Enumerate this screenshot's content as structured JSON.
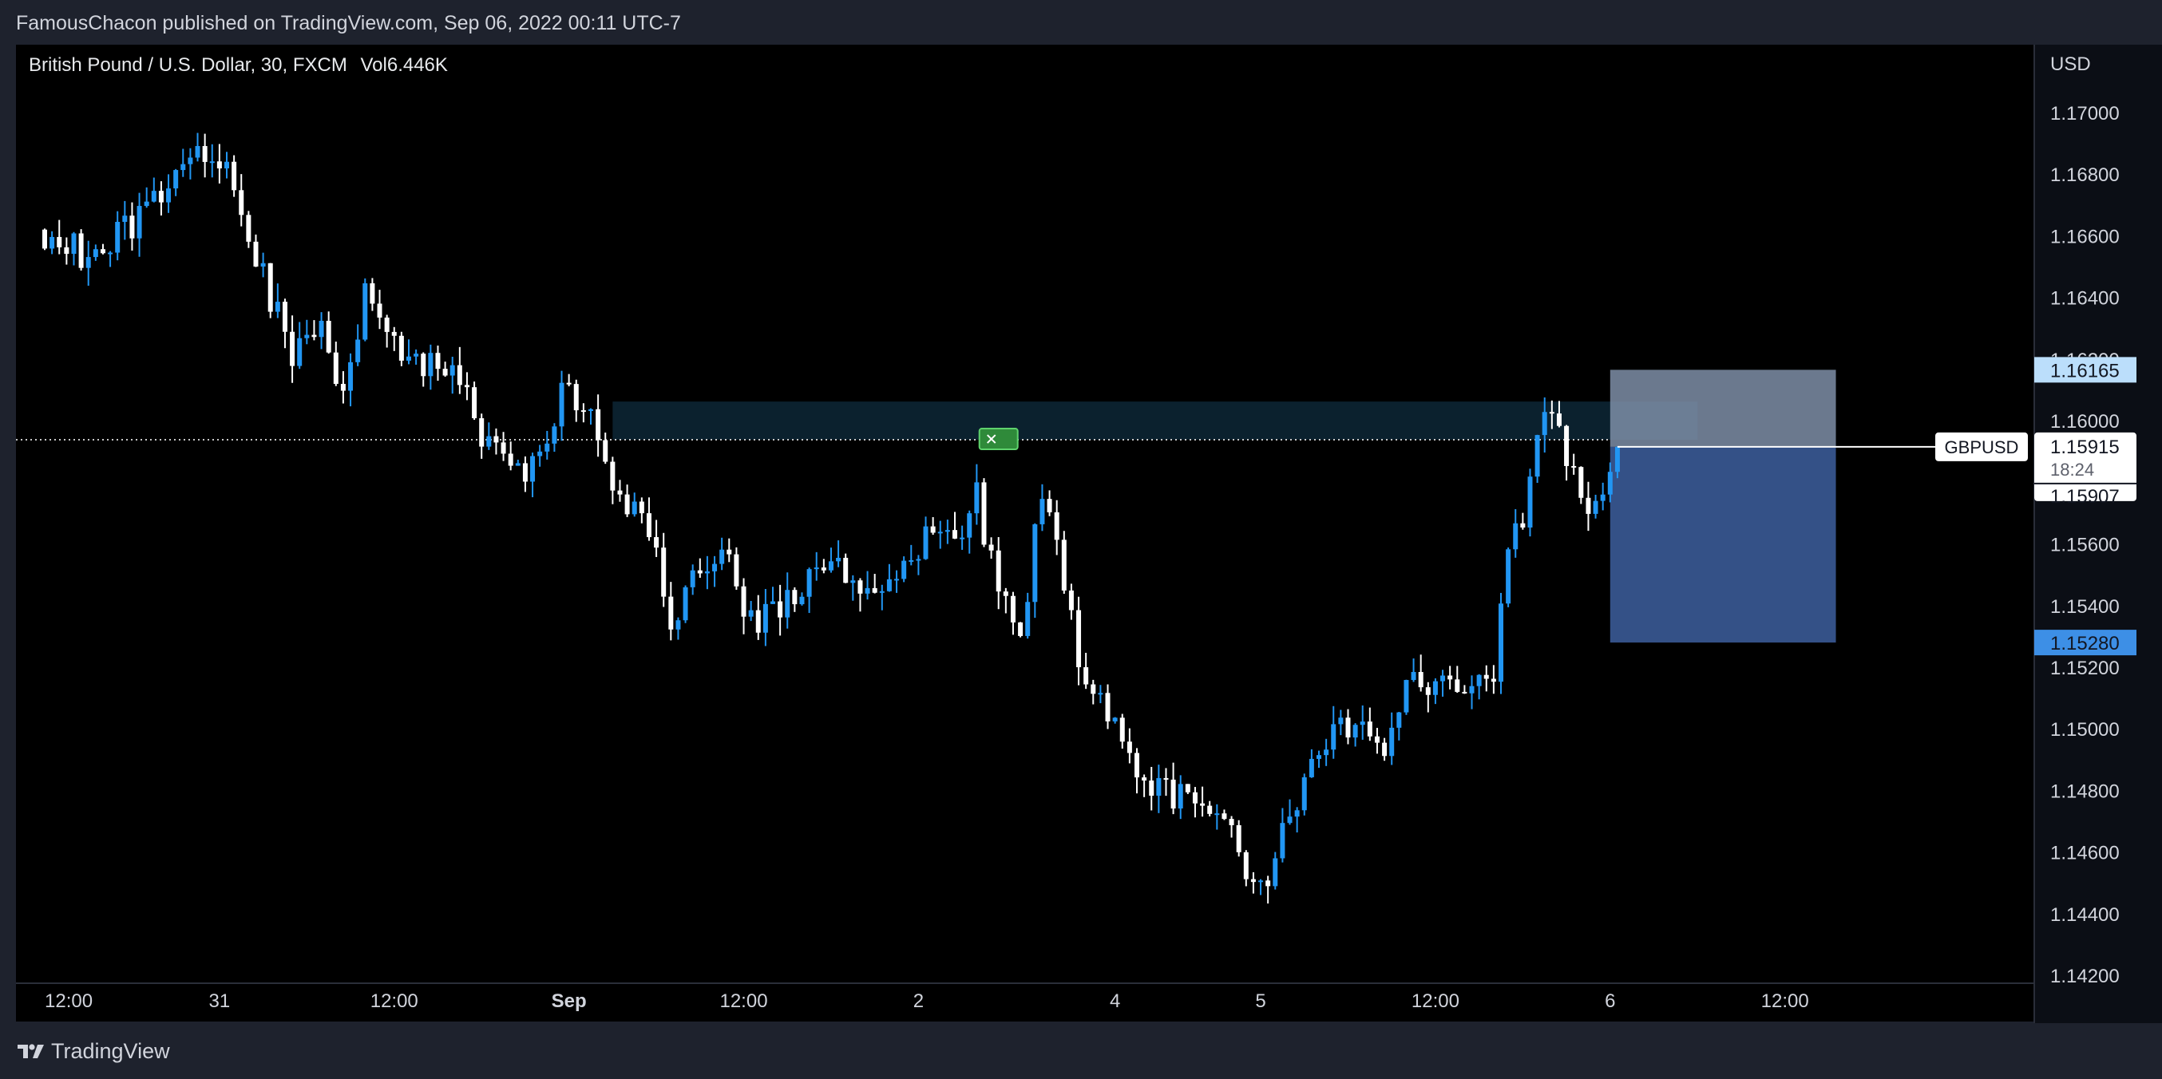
{
  "header": {
    "published_text": "FamousChacon published on TradingView.com, Sep 06, 2022 00:11 UTC-7"
  },
  "legend": {
    "symbol_text": "British Pound / U.S. Dollar, 30, FXCM",
    "volume_text": "Vol6.446K"
  },
  "footer": {
    "logo_text": "TradingView",
    "logo_icon": "tradingview-logo-icon"
  },
  "colors": {
    "background": "#000000",
    "chrome": "#1e222d",
    "bullish": "#2196f3",
    "bearish": "#ffffff",
    "axis_text": "#d1d4dc",
    "resistance_zone": "#0c2330",
    "stop_zone": "#7e8ea7",
    "target_zone": "#3a5a96",
    "stop_label": "#bbdefb",
    "target_label": "#3d8fe6",
    "marker": "#2f8a3a"
  },
  "chart_data": {
    "type": "candlestick",
    "symbol": "British Pound / U.S. Dollar",
    "ticker": "GBPUSD",
    "interval": "30",
    "source": "FXCM",
    "volume": "Vol6.446K",
    "currency": "USD",
    "ylim": [
      1.1419,
      1.1722
    ],
    "y_ticks": [
      "1.17000",
      "1.16800",
      "1.16600",
      "1.16400",
      "1.16200",
      "1.16000",
      "1.15800",
      "1.15600",
      "1.15400",
      "1.15200",
      "1.15000",
      "1.14800",
      "1.14600",
      "1.14400",
      "1.14200"
    ],
    "x_ticks": [
      {
        "label": "12:00",
        "bar": 0,
        "bold": false
      },
      {
        "label": "31",
        "bar": 24,
        "bold": false
      },
      {
        "label": "12:00",
        "bar": 48,
        "bold": false
      },
      {
        "label": "Sep",
        "bar": 72,
        "bold": true
      },
      {
        "label": "12:00",
        "bar": 96,
        "bold": false
      },
      {
        "label": "2",
        "bar": 120,
        "bold": false
      },
      {
        "label": "4",
        "bar": 147,
        "bold": false
      },
      {
        "label": "5",
        "bar": 167,
        "bold": false
      },
      {
        "label": "12:00",
        "bar": 191,
        "bold": false
      },
      {
        "label": "6",
        "bar": 215,
        "bold": false
      },
      {
        "label": "12:00",
        "bar": 239,
        "bold": false
      }
    ],
    "waypoints": [
      [
        0,
        1.1658
      ],
      [
        5,
        1.1655
      ],
      [
        12,
        1.1663
      ],
      [
        16,
        1.1675
      ],
      [
        22,
        1.1688
      ],
      [
        25,
        1.1685
      ],
      [
        28,
        1.166
      ],
      [
        31,
        1.164
      ],
      [
        34,
        1.1622
      ],
      [
        38,
        1.1628
      ],
      [
        41,
        1.1612
      ],
      [
        44,
        1.164
      ],
      [
        47,
        1.163
      ],
      [
        50,
        1.162
      ],
      [
        55,
        1.1618
      ],
      [
        60,
        1.1597
      ],
      [
        63,
        1.1585
      ],
      [
        66,
        1.1583
      ],
      [
        69,
        1.159
      ],
      [
        71,
        1.1612
      ],
      [
        75,
        1.1602
      ],
      [
        78,
        1.1575
      ],
      [
        82,
        1.1575
      ],
      [
        84,
        1.1555
      ],
      [
        86,
        1.153
      ],
      [
        89,
        1.155
      ],
      [
        93,
        1.156
      ],
      [
        97,
        1.1535
      ],
      [
        100,
        1.154
      ],
      [
        104,
        1.1545
      ],
      [
        108,
        1.1555
      ],
      [
        111,
        1.1548
      ],
      [
        115,
        1.155
      ],
      [
        118,
        1.155
      ],
      [
        122,
        1.1565
      ],
      [
        126,
        1.156
      ],
      [
        128,
        1.1575
      ],
      [
        131,
        1.1545
      ],
      [
        134,
        1.1525
      ],
      [
        137,
        1.158
      ],
      [
        139,
        1.1565
      ],
      [
        141,
        1.1535
      ],
      [
        142,
        1.1515
      ],
      [
        145,
        1.151
      ],
      [
        147,
        1.1505
      ],
      [
        150,
        1.148
      ],
      [
        155,
        1.1478
      ],
      [
        159,
        1.148
      ],
      [
        163,
        1.1465
      ],
      [
        167,
        1.1448
      ],
      [
        169,
        1.146
      ],
      [
        173,
        1.148
      ],
      [
        177,
        1.15
      ],
      [
        181,
        1.1505
      ],
      [
        183,
        1.149
      ],
      [
        186,
        1.151
      ],
      [
        189,
        1.1515
      ],
      [
        194,
        1.1516
      ],
      [
        199,
        1.1515
      ],
      [
        200,
        1.1545
      ],
      [
        203,
        1.157
      ],
      [
        205,
        1.1595
      ],
      [
        207,
        1.16
      ],
      [
        210,
        1.1585
      ],
      [
        212,
        1.1565
      ],
      [
        213,
        1.157
      ],
      [
        215,
        1.158
      ],
      [
        216,
        1.159
      ]
    ],
    "key_level": 1.15938,
    "resistance_zone": {
      "top": 1.16062,
      "bottom": 1.15938,
      "bar_start": 78,
      "bar_end": 227
    },
    "position": {
      "entry": 1.15915,
      "stop": 1.16165,
      "target": 1.1528,
      "bar_start": 215,
      "bar_end": 246
    },
    "signal_marker": {
      "bar": 131,
      "price": 1.15938
    },
    "price_labels": {
      "stop_loss": "1.16165",
      "target": "1.15280",
      "last_price": "1.15915",
      "countdown": "18:24",
      "bid": "1.15907",
      "ticker_tag": "GBPUSD"
    }
  }
}
